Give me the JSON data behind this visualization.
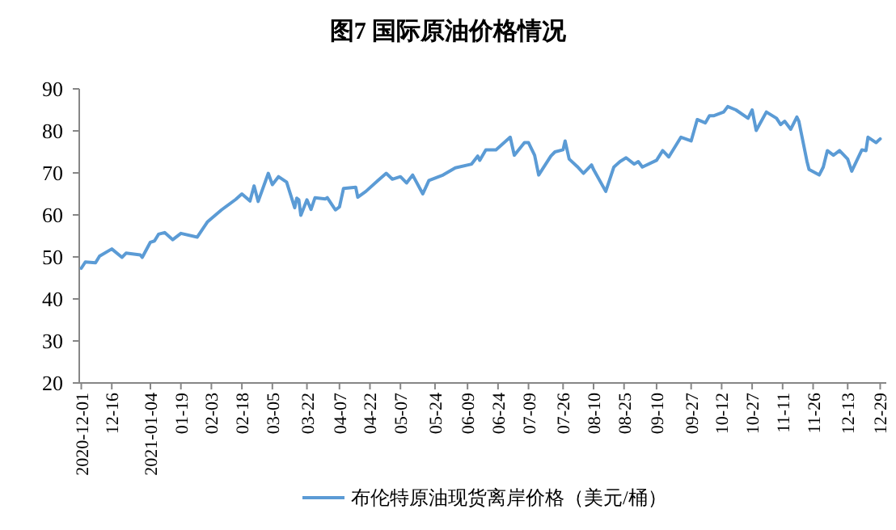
{
  "chart_data": {
    "type": "line",
    "title": "图7  国际原油价格情况",
    "x": [
      "2020-12-01",
      "2020-12-03",
      "2020-12-08",
      "2020-12-10",
      "2020-12-16",
      "2020-12-21",
      "2020-12-23",
      "2020-12-30",
      "2020-12-31",
      "2021-01-04",
      "2021-01-06",
      "2021-01-08",
      "2021-01-11",
      "2021-01-15",
      "2021-01-19",
      "2021-01-27",
      "2021-02-01",
      "2021-02-08",
      "2021-02-15",
      "2021-02-18",
      "2021-02-22",
      "2021-02-24",
      "2021-02-26",
      "2021-03-03",
      "2021-03-05",
      "2021-03-08",
      "2021-03-12",
      "2021-03-16",
      "2021-03-17",
      "2021-03-18",
      "2021-03-19",
      "2021-03-22",
      "2021-03-24",
      "2021-03-26",
      "2021-03-31",
      "2021-04-01",
      "2021-04-05",
      "2021-04-07",
      "2021-04-09",
      "2021-04-15",
      "2021-04-16",
      "2021-04-20",
      "2021-04-26",
      "2021-04-30",
      "2021-05-03",
      "2021-05-07",
      "2021-05-10",
      "2021-05-13",
      "2021-05-18",
      "2021-05-21",
      "2021-05-28",
      "2021-06-03",
      "2021-06-11",
      "2021-06-14",
      "2021-06-15",
      "2021-06-18",
      "2021-06-23",
      "2021-06-30",
      "2021-07-02",
      "2021-07-07",
      "2021-07-09",
      "2021-07-12",
      "2021-07-14",
      "2021-07-20",
      "2021-07-22",
      "2021-07-26",
      "2021-07-27",
      "2021-07-29",
      "2021-08-02",
      "2021-08-05",
      "2021-08-09",
      "2021-08-10",
      "2021-08-16",
      "2021-08-20",
      "2021-08-23",
      "2021-08-26",
      "2021-08-30",
      "2021-09-01",
      "2021-09-03",
      "2021-09-10",
      "2021-09-13",
      "2021-09-16",
      "2021-09-22",
      "2021-09-27",
      "2021-09-30",
      "2021-10-04",
      "2021-10-06",
      "2021-10-08",
      "2021-10-13",
      "2021-10-15",
      "2021-10-19",
      "2021-10-25",
      "2021-10-27",
      "2021-10-29",
      "2021-11-03",
      "2021-11-08",
      "2021-11-10",
      "2021-11-12",
      "2021-11-15",
      "2021-11-18",
      "2021-11-19",
      "2021-11-23",
      "2021-11-24",
      "2021-11-29",
      "2021-12-01",
      "2021-12-03",
      "2021-12-06",
      "2021-12-09",
      "2021-12-13",
      "2021-12-15",
      "2021-12-20",
      "2021-12-22",
      "2021-12-23",
      "2021-12-27",
      "2021-12-29"
    ],
    "series": [
      {
        "name": "布伦特原油现货离岸价格（美元/桶）",
        "color": "#5b9bd5",
        "values": [
          47.3,
          48.8,
          48.6,
          50.2,
          51.9,
          49.9,
          50.9,
          50.5,
          49.9,
          53.5,
          53.8,
          55.4,
          55.8,
          54.1,
          55.6,
          54.7,
          58.3,
          61.2,
          63.7,
          65.0,
          63.3,
          66.9,
          63.2,
          69.9,
          67.2,
          69.1,
          67.8,
          61.7,
          64.0,
          63.6,
          59.9,
          63.6,
          61.3,
          64.1,
          63.8,
          64.1,
          61.2,
          61.9,
          66.3,
          66.6,
          64.2,
          65.6,
          68.2,
          69.9,
          68.5,
          69.1,
          67.6,
          69.5,
          65.0,
          68.2,
          69.5,
          71.2,
          72.1,
          74.0,
          73.0,
          75.5,
          75.5,
          78.5,
          74.2,
          77.2,
          77.2,
          74.2,
          69.5,
          74.0,
          75.0,
          75.5,
          77.6,
          73.3,
          71.5,
          69.9,
          71.9,
          70.8,
          65.6,
          71.4,
          72.7,
          73.6,
          72.1,
          72.7,
          71.4,
          73.0,
          75.3,
          73.8,
          78.5,
          77.6,
          82.7,
          81.9,
          83.6,
          83.6,
          84.5,
          85.8,
          85.0,
          83.0,
          85.0,
          80.1,
          84.5,
          83.0,
          81.5,
          82.3,
          80.4,
          83.3,
          82.3,
          72.7,
          70.8,
          69.5,
          71.4,
          75.3,
          74.2,
          75.3,
          73.3,
          70.4,
          75.5,
          75.3,
          78.5,
          77.2,
          78.1
        ]
      }
    ],
    "xlim": [
      "2020-11-30",
      "2022-01-01"
    ],
    "xticks": [
      {
        "value": "2020-12-01",
        "label": "2020-12-01"
      },
      {
        "value": "2020-12-16",
        "label": "12-16"
      },
      {
        "value": "2021-01-04",
        "label": "2021-01-04"
      },
      {
        "value": "2021-01-19",
        "label": "01-19"
      },
      {
        "value": "2021-02-03",
        "label": "02-03"
      },
      {
        "value": "2021-02-18",
        "label": "02-18"
      },
      {
        "value": "2021-03-05",
        "label": "03-05"
      },
      {
        "value": "2021-03-22",
        "label": "03-22"
      },
      {
        "value": "2021-04-07",
        "label": "04-07"
      },
      {
        "value": "2021-04-22",
        "label": "04-22"
      },
      {
        "value": "2021-05-07",
        "label": "05-07"
      },
      {
        "value": "2021-05-24",
        "label": "05-24"
      },
      {
        "value": "2021-06-09",
        "label": "06-09"
      },
      {
        "value": "2021-06-24",
        "label": "06-24"
      },
      {
        "value": "2021-07-09",
        "label": "07-09"
      },
      {
        "value": "2021-07-26",
        "label": "07-26"
      },
      {
        "value": "2021-08-10",
        "label": "08-10"
      },
      {
        "value": "2021-08-25",
        "label": "08-25"
      },
      {
        "value": "2021-09-10",
        "label": "09-10"
      },
      {
        "value": "2021-09-27",
        "label": "09-27"
      },
      {
        "value": "2021-10-12",
        "label": "10-12"
      },
      {
        "value": "2021-10-27",
        "label": "10-27"
      },
      {
        "value": "2021-11-11",
        "label": "11-11"
      },
      {
        "value": "2021-11-26",
        "label": "11-26"
      },
      {
        "value": "2021-12-13",
        "label": "12-13"
      },
      {
        "value": "2021-12-29",
        "label": "12-29"
      }
    ],
    "ylim": [
      20,
      90
    ],
    "yticks": [
      20,
      30,
      40,
      50,
      60,
      70,
      80,
      90
    ],
    "grid": false,
    "legend": "bottom",
    "marker": "none",
    "line_style": "solid"
  }
}
